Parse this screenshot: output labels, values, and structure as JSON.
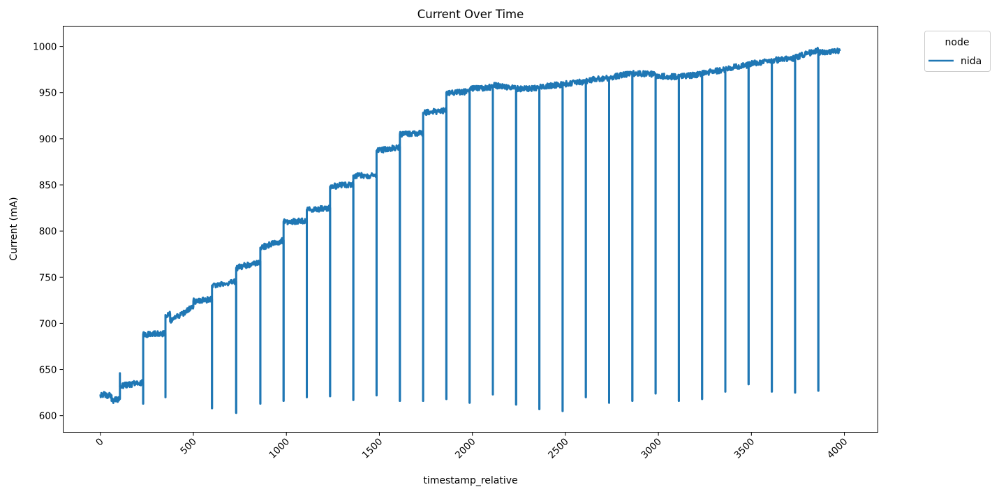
{
  "chart_data": {
    "type": "line",
    "title": "Current Over Time",
    "xlabel": "timestamp_relative",
    "ylabel": "Current (mA)",
    "xlim": [
      -200,
      4180
    ],
    "ylim": [
      582,
      1022
    ],
    "xticks": [
      0,
      500,
      1000,
      1500,
      2000,
      2500,
      3000,
      3500,
      4000
    ],
    "xtick_labels": [
      "0",
      "500",
      "1000",
      "1500",
      "2000",
      "2500",
      "3000",
      "3500",
      "4000"
    ],
    "yticks": [
      600,
      650,
      700,
      750,
      800,
      850,
      900,
      950,
      1000
    ],
    "ytick_labels": [
      "600",
      "650",
      "700",
      "750",
      "800",
      "850",
      "900",
      "950",
      "1000"
    ],
    "xtick_rotation": 45,
    "grid": false,
    "legend": {
      "title": "node",
      "placement": "upper-right-outside"
    },
    "series": [
      {
        "name": "nida",
        "color": "#1f77b4",
        "segments": [
          {
            "x0": 0,
            "x1": 35,
            "v0": 623,
            "v1": 623
          },
          {
            "x0": 35,
            "x1": 60,
            "v0": 622,
            "v1": 622
          },
          {
            "x0": 60,
            "x1": 105,
            "v0": 616,
            "v1": 618
          },
          {
            "x0": 105,
            "x1": 230,
            "v0": 632,
            "v1": 636
          },
          {
            "x0": 230,
            "x1": 350,
            "v0": 688,
            "v1": 689
          },
          {
            "x0": 350,
            "x1": 375,
            "v0": 709,
            "v1": 710
          },
          {
            "x0": 375,
            "x1": 500,
            "v0": 702,
            "v1": 718
          },
          {
            "x0": 500,
            "x1": 600,
            "v0": 724,
            "v1": 726
          },
          {
            "x0": 600,
            "x1": 730,
            "v0": 741,
            "v1": 745
          },
          {
            "x0": 730,
            "x1": 860,
            "v0": 760,
            "v1": 767
          },
          {
            "x0": 860,
            "x1": 985,
            "v0": 782,
            "v1": 790
          },
          {
            "x0": 985,
            "x1": 1110,
            "v0": 810,
            "v1": 811
          },
          {
            "x0": 1110,
            "x1": 1235,
            "v0": 823,
            "v1": 825
          },
          {
            "x0": 1235,
            "x1": 1360,
            "v0": 848,
            "v1": 851
          },
          {
            "x0": 1360,
            "x1": 1485,
            "v0": 860,
            "v1": 860
          },
          {
            "x0": 1485,
            "x1": 1610,
            "v0": 887,
            "v1": 891
          },
          {
            "x0": 1610,
            "x1": 1735,
            "v0": 905,
            "v1": 906
          },
          {
            "x0": 1735,
            "x1": 1860,
            "v0": 928,
            "v1": 931
          },
          {
            "x0": 1860,
            "x1": 1985,
            "v0": 950,
            "v1": 951
          },
          {
            "x0": 1985,
            "x1": 2110,
            "v0": 954,
            "v1": 956
          },
          {
            "x0": 2110,
            "x1": 2235,
            "v0": 958,
            "v1": 955
          },
          {
            "x0": 2235,
            "x1": 2360,
            "v0": 954,
            "v1": 955
          },
          {
            "x0": 2360,
            "x1": 2485,
            "v0": 956,
            "v1": 959
          },
          {
            "x0": 2485,
            "x1": 2610,
            "v0": 959,
            "v1": 962
          },
          {
            "x0": 2610,
            "x1": 2735,
            "v0": 963,
            "v1": 966
          },
          {
            "x0": 2735,
            "x1": 2860,
            "v0": 966,
            "v1": 971
          },
          {
            "x0": 2860,
            "x1": 2985,
            "v0": 971,
            "v1": 970
          },
          {
            "x0": 2985,
            "x1": 3110,
            "v0": 968,
            "v1": 967
          },
          {
            "x0": 3110,
            "x1": 3235,
            "v0": 967,
            "v1": 970
          },
          {
            "x0": 3235,
            "x1": 3360,
            "v0": 971,
            "v1": 975
          },
          {
            "x0": 3360,
            "x1": 3485,
            "v0": 976,
            "v1": 980
          },
          {
            "x0": 3485,
            "x1": 3610,
            "v0": 981,
            "v1": 984
          },
          {
            "x0": 3610,
            "x1": 3735,
            "v0": 985,
            "v1": 987
          },
          {
            "x0": 3735,
            "x1": 3860,
            "v0": 988,
            "v1": 996
          },
          {
            "x0": 3860,
            "x1": 3975,
            "v0": 994,
            "v1": 995
          }
        ],
        "dips": [
          {
            "x": 230,
            "y": 613
          },
          {
            "x": 350,
            "y": 620
          },
          {
            "x": 600,
            "y": 608
          },
          {
            "x": 730,
            "y": 603
          },
          {
            "x": 860,
            "y": 613
          },
          {
            "x": 985,
            "y": 616
          },
          {
            "x": 1110,
            "y": 620
          },
          {
            "x": 1235,
            "y": 621
          },
          {
            "x": 1360,
            "y": 617
          },
          {
            "x": 1485,
            "y": 622
          },
          {
            "x": 1610,
            "y": 616
          },
          {
            "x": 1735,
            "y": 616
          },
          {
            "x": 1860,
            "y": 618
          },
          {
            "x": 1985,
            "y": 614
          },
          {
            "x": 2110,
            "y": 623
          },
          {
            "x": 2235,
            "y": 612
          },
          {
            "x": 2360,
            "y": 607
          },
          {
            "x": 2485,
            "y": 605
          },
          {
            "x": 2610,
            "y": 620
          },
          {
            "x": 2735,
            "y": 614
          },
          {
            "x": 2860,
            "y": 616
          },
          {
            "x": 2985,
            "y": 624
          },
          {
            "x": 3110,
            "y": 616
          },
          {
            "x": 3235,
            "y": 618
          },
          {
            "x": 3360,
            "y": 626
          },
          {
            "x": 3485,
            "y": 634
          },
          {
            "x": 3610,
            "y": 626
          },
          {
            "x": 3735,
            "y": 625
          },
          {
            "x": 3860,
            "y": 627
          }
        ],
        "spikes": [
          {
            "x": 105,
            "y": 646
          }
        ],
        "noise_amplitude": 3
      }
    ]
  }
}
